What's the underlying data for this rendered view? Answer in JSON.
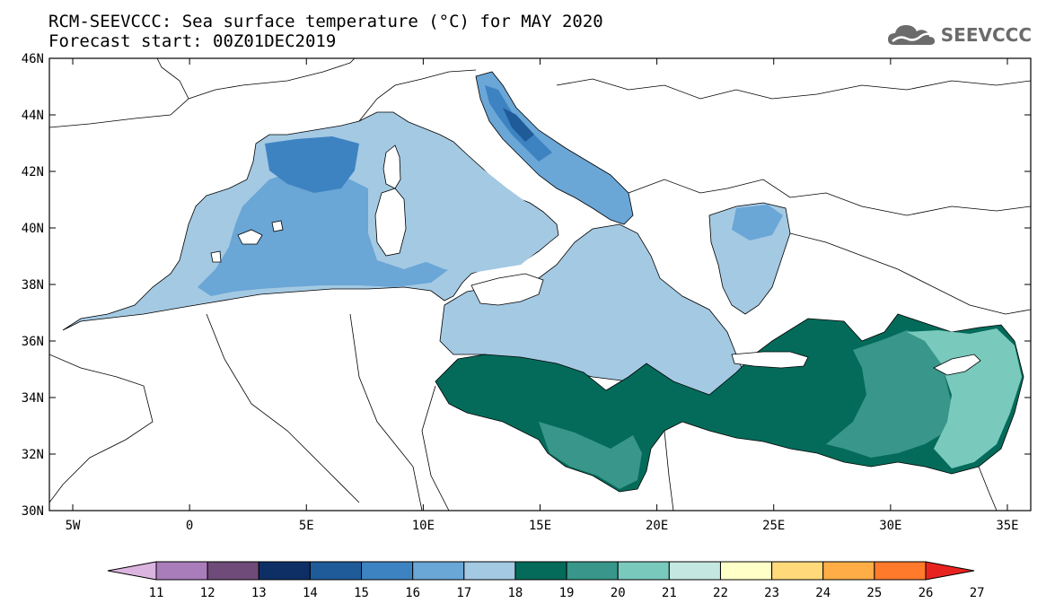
{
  "header": {
    "title": "RCM-SEEVCCC: Sea surface temperature (°C) for MAY 2020",
    "subtitle": "Forecast start: 00Z01DEC2019",
    "logo_text": "SEEVCCC",
    "logo_icon": "cloud-logo-icon"
  },
  "map": {
    "lon_range": [
      -6,
      36
    ],
    "lat_range": [
      30,
      46
    ],
    "lat_ticks": [
      "30N",
      "32N",
      "34N",
      "36N",
      "38N",
      "40N",
      "42N",
      "44N",
      "46N"
    ],
    "lat_values": [
      30,
      32,
      34,
      36,
      38,
      40,
      42,
      44,
      46
    ],
    "lon_ticks": [
      "5W",
      "0",
      "5E",
      "10E",
      "15E",
      "20E",
      "25E",
      "30E",
      "35E"
    ],
    "lon_values": [
      -5,
      0,
      5,
      10,
      15,
      20,
      25,
      30,
      35
    ]
  },
  "colorbar": {
    "labels": [
      "11",
      "12",
      "13",
      "14",
      "15",
      "16",
      "17",
      "18",
      "19",
      "20",
      "21",
      "22",
      "23",
      "24",
      "25",
      "26",
      "27"
    ],
    "colors": [
      "#dcb4e0",
      "#a97cba",
      "#6e4b78",
      "#0d2f66",
      "#1f5b99",
      "#3d83c2",
      "#6aa6d6",
      "#a4c9e3",
      "#046b5a",
      "#39968a",
      "#79c9bd",
      "#c4e8e1",
      "#ffffc8",
      "#ffd97a",
      "#ffae47",
      "#ff7a2b",
      "#e8231f"
    ]
  }
}
